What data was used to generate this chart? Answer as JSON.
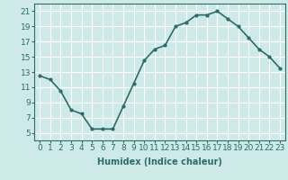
{
  "x": [
    0,
    1,
    2,
    3,
    4,
    5,
    6,
    7,
    8,
    9,
    10,
    11,
    12,
    13,
    14,
    15,
    16,
    17,
    18,
    19,
    20,
    21,
    22,
    23
  ],
  "y": [
    12.5,
    12,
    10.5,
    8,
    7.5,
    5.5,
    5.5,
    5.5,
    8.5,
    11.5,
    14.5,
    16,
    16.5,
    19,
    19.5,
    20.5,
    20.5,
    21,
    20,
    19,
    17.5,
    16,
    15,
    13.5
  ],
  "line_color": "#2d6b6b",
  "marker": "o",
  "marker_size": 2.0,
  "bg_color": "#ceeae8",
  "grid_color": "#ffffff",
  "xlabel": "Humidex (Indice chaleur)",
  "ylim": [
    4,
    22
  ],
  "xlim": [
    -0.5,
    23.5
  ],
  "yticks": [
    5,
    7,
    9,
    11,
    13,
    15,
    17,
    19,
    21
  ],
  "xticks": [
    0,
    1,
    2,
    3,
    4,
    5,
    6,
    7,
    8,
    9,
    10,
    11,
    12,
    13,
    14,
    15,
    16,
    17,
    18,
    19,
    20,
    21,
    22,
    23
  ],
  "xlabel_fontsize": 7,
  "tick_fontsize": 6.5,
  "line_width": 1.2
}
